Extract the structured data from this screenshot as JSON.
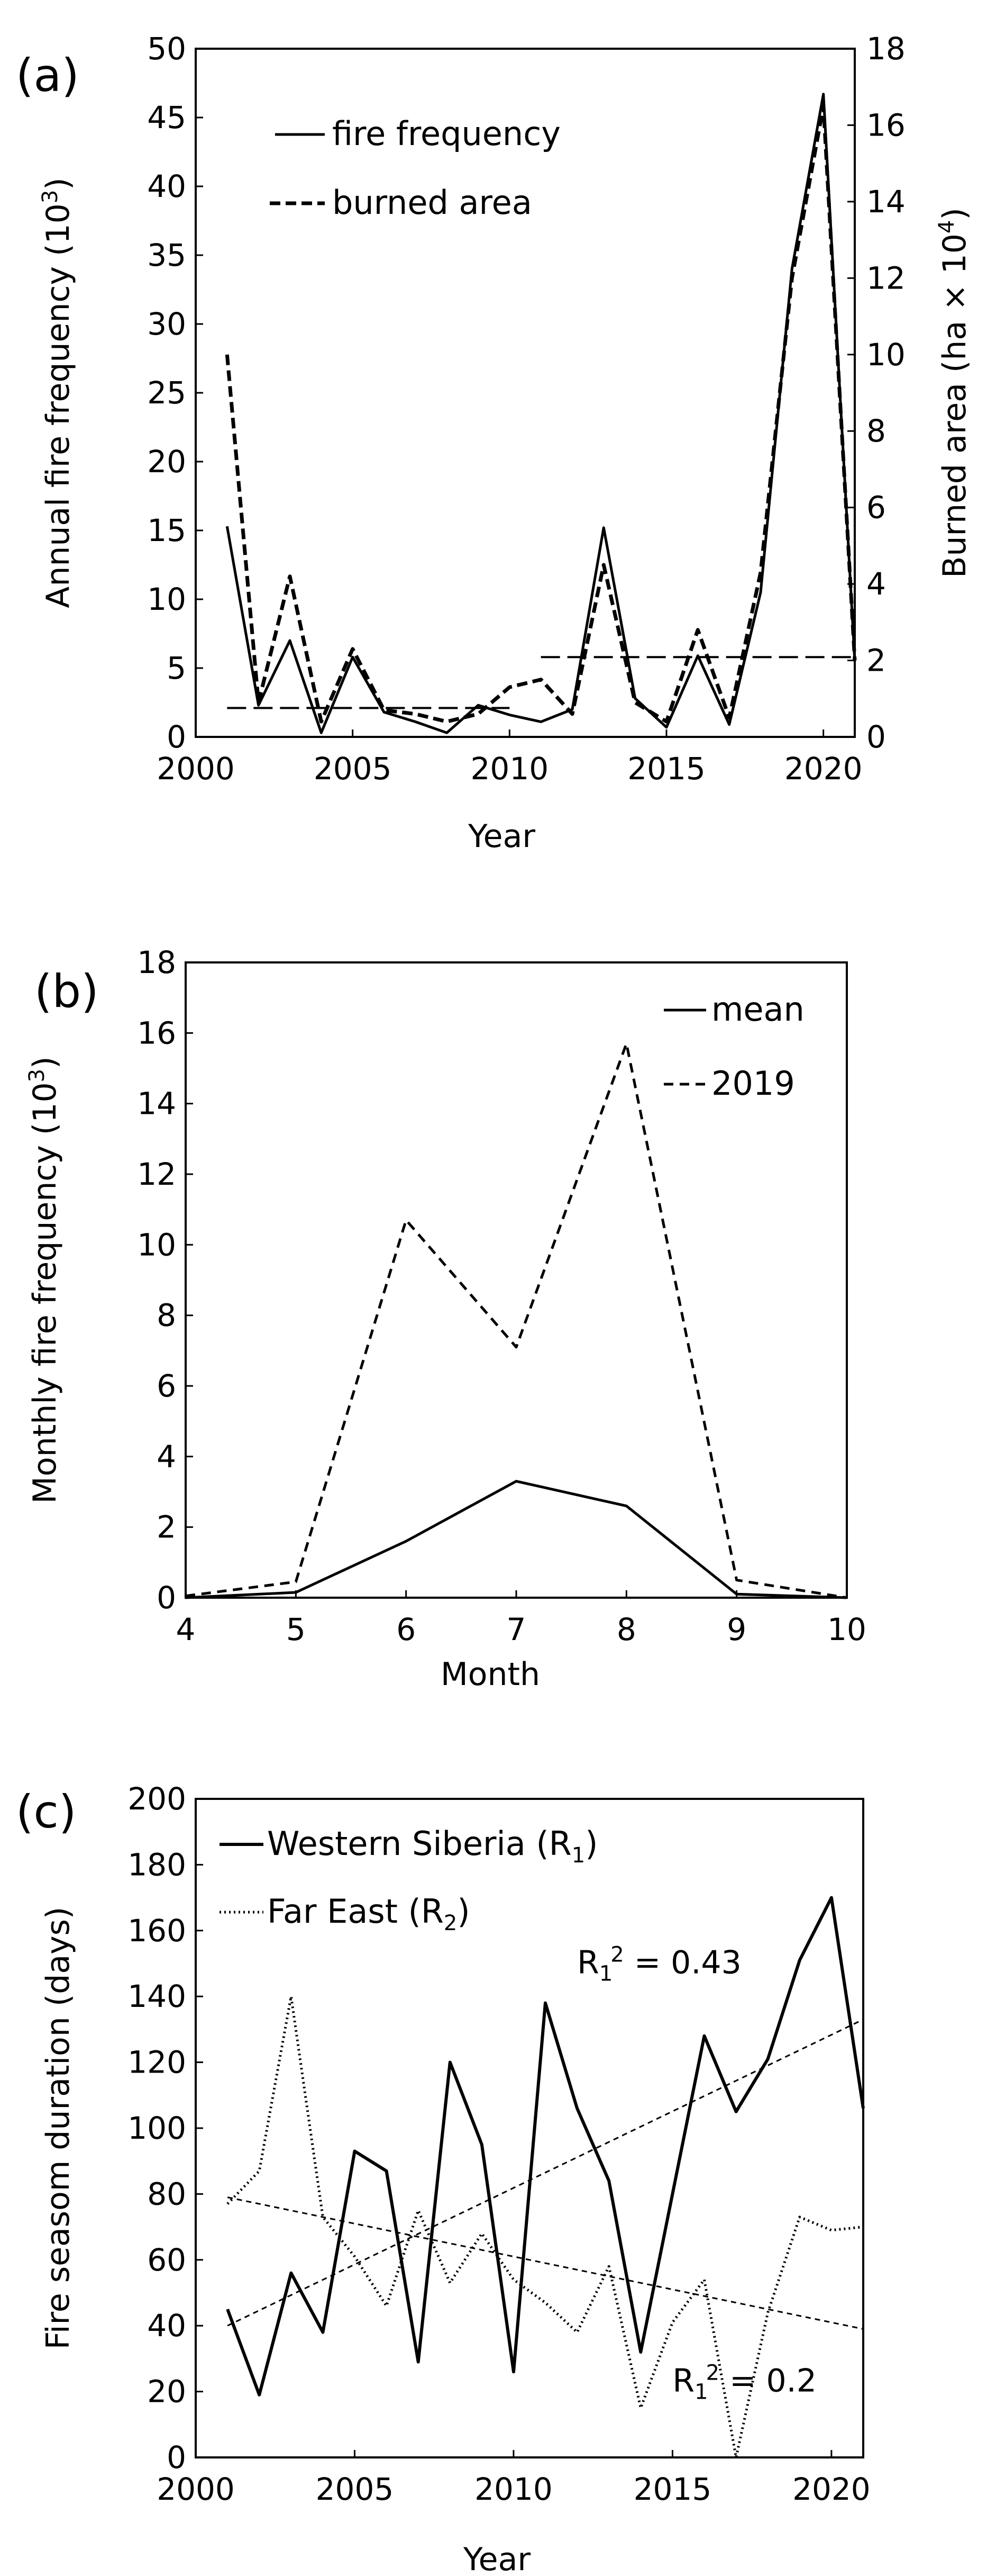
{
  "chart_data": [
    {
      "panel": "(a)",
      "type": "line",
      "xlabel": "Year",
      "ylabel": "Annual fire frequency (10",
      "ylabel_sup": "3",
      "ylabel_end": ")",
      "y2label": "Burned area (ha × 10",
      "y2label_sup": "4",
      "y2label_end": ")",
      "xlim": [
        2000,
        2021
      ],
      "ylim": [
        0,
        50
      ],
      "y2lim": [
        0,
        18
      ],
      "xticks": [
        2000,
        2005,
        2010,
        2015,
        2020
      ],
      "yticks": [
        0,
        5,
        10,
        15,
        20,
        25,
        30,
        35,
        40,
        45,
        50
      ],
      "y2ticks": [
        0,
        2,
        4,
        6,
        8,
        10,
        12,
        14,
        16,
        18
      ],
      "x": [
        2001,
        2002,
        2003,
        2004,
        2005,
        2006,
        2007,
        2008,
        2009,
        2010,
        2011,
        2012,
        2013,
        2014,
        2015,
        2016,
        2017,
        2018,
        2019,
        2020,
        2021
      ],
      "series": [
        {
          "name": "fire frequency",
          "style": "solid",
          "axis": "left",
          "values": [
            15.3,
            2.3,
            7.0,
            0.3,
            5.8,
            1.8,
            1.1,
            0.3,
            2.3,
            1.6,
            1.1,
            2.0,
            15.2,
            2.8,
            0.7,
            5.9,
            0.9,
            10.5,
            34.0,
            46.7,
            5.5
          ]
        },
        {
          "name": "burned area",
          "style": "dashed",
          "axis": "right",
          "values": [
            10.0,
            0.9,
            4.2,
            0.4,
            2.3,
            0.7,
            0.6,
            0.4,
            0.6,
            1.3,
            1.5,
            0.6,
            4.5,
            0.9,
            0.4,
            2.8,
            0.5,
            4.3,
            12.0,
            16.5,
            2.0
          ]
        }
      ],
      "mean_lines": [
        {
          "x_from": 2001,
          "x_to": 2010,
          "y": 2.1
        },
        {
          "x_from": 2011,
          "x_to": 2021,
          "y": 5.8
        }
      ],
      "legend": [
        "fire frequency",
        "burned area"
      ]
    },
    {
      "panel": "(b)",
      "type": "line",
      "xlabel": "Month",
      "ylabel": "Monthly fire frequency (10",
      "ylabel_sup": "3",
      "ylabel_end": ")",
      "xlim": [
        4,
        10
      ],
      "ylim": [
        0,
        18
      ],
      "xticks": [
        4,
        5,
        6,
        7,
        8,
        9,
        10
      ],
      "yticks": [
        0,
        2,
        4,
        6,
        8,
        10,
        12,
        14,
        16,
        18
      ],
      "x": [
        4,
        5,
        6,
        7,
        8,
        9,
        10
      ],
      "series": [
        {
          "name": "mean",
          "style": "solid",
          "values": [
            0.0,
            0.15,
            1.6,
            3.3,
            2.6,
            0.1,
            0.0
          ]
        },
        {
          "name": "2019",
          "style": "dashed",
          "values": [
            0.05,
            0.45,
            10.7,
            7.1,
            15.7,
            0.5,
            0.0
          ]
        }
      ],
      "legend": [
        "mean",
        "2019"
      ]
    },
    {
      "panel": "(c)",
      "type": "line",
      "xlabel": "Year",
      "ylabel": "Fire seasom duration (days)",
      "xlim": [
        2000,
        2021
      ],
      "ylim": [
        0,
        200
      ],
      "xticks": [
        2000,
        2005,
        2010,
        2015,
        2020
      ],
      "yticks": [
        0,
        20,
        40,
        60,
        80,
        100,
        120,
        140,
        160,
        180,
        200
      ],
      "x": [
        2001,
        2002,
        2003,
        2004,
        2005,
        2006,
        2007,
        2008,
        2009,
        2010,
        2011,
        2012,
        2013,
        2014,
        2015,
        2016,
        2017,
        2018,
        2019,
        2020,
        2021
      ],
      "series": [
        {
          "name": "Western Siberia (R",
          "sub": "1",
          "name_end": ")",
          "style": "solid",
          "values": [
            45,
            19,
            56,
            38,
            93,
            87,
            29,
            120,
            95,
            26,
            138,
            106,
            84,
            32,
            80,
            128,
            105,
            121,
            151,
            170,
            106
          ]
        },
        {
          "name": "Far East (R",
          "sub": "2",
          "name_end": ")",
          "style": "dotted",
          "values": [
            77,
            87,
            140,
            73,
            61,
            46,
            75,
            53,
            68,
            54,
            47,
            38,
            58,
            15,
            41,
            54,
            0,
            44,
            73,
            69,
            70
          ]
        }
      ],
      "trendlines": [
        {
          "style": "dashed",
          "x": [
            2001,
            2021
          ],
          "y": [
            40,
            133
          ]
        },
        {
          "style": "dashed",
          "x": [
            2001,
            2021
          ],
          "y": [
            79,
            39
          ]
        }
      ],
      "annotations": [
        {
          "text_pre": "R",
          "sub": "1",
          "text_sup": "2",
          "text_post": " = 0.43",
          "x": 2012,
          "y": 147
        },
        {
          "text_pre": "R",
          "sub": "1",
          "text_sup": "2",
          "text_post": " = 0.2",
          "x": 2015,
          "y": 20
        }
      ],
      "legend": [
        "Western Siberia (R1)",
        "Far East (R2)"
      ]
    }
  ]
}
